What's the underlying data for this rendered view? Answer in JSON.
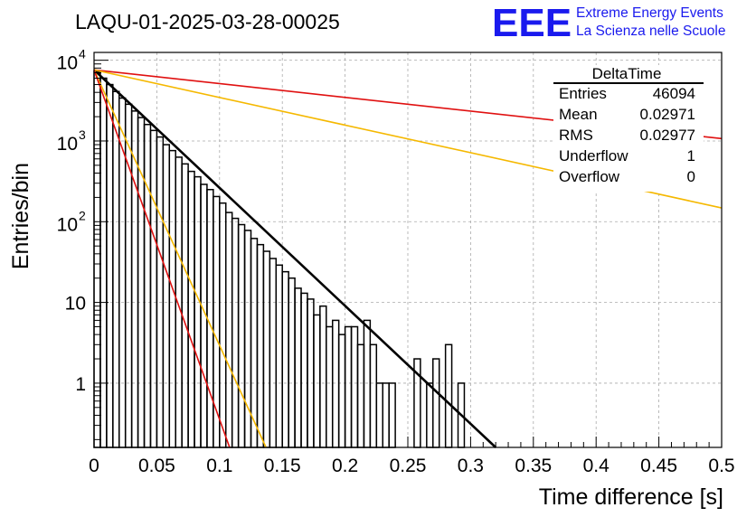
{
  "chart_data": {
    "type": "histogram",
    "title": "LAQU-01-2025-03-28-00025",
    "xlabel": "Time difference [s]",
    "ylabel": "Entries/bin",
    "xlim": [
      0,
      0.5
    ],
    "ylim": [
      0.16,
      12500
    ],
    "y_scale": "log",
    "grid": true,
    "x_ticks": [
      {
        "v": 0,
        "label": "0"
      },
      {
        "v": 0.05,
        "label": "0.05"
      },
      {
        "v": 0.1,
        "label": "0.1"
      },
      {
        "v": 0.15,
        "label": "0.15"
      },
      {
        "v": 0.2,
        "label": "0.2"
      },
      {
        "v": 0.25,
        "label": "0.25"
      },
      {
        "v": 0.3,
        "label": "0.3"
      },
      {
        "v": 0.35,
        "label": "0.35"
      },
      {
        "v": 0.4,
        "label": "0.4"
      },
      {
        "v": 0.45,
        "label": "0.45"
      },
      {
        "v": 0.5,
        "label": "0.5"
      }
    ],
    "y_ticks": [
      {
        "v": 1,
        "label": "1"
      },
      {
        "v": 10,
        "label": "10"
      },
      {
        "v": 100,
        "base": "10",
        "exp": "2"
      },
      {
        "v": 1000,
        "base": "10",
        "exp": "3"
      },
      {
        "v": 10000,
        "base": "10",
        "exp": "4"
      }
    ],
    "histogram": {
      "bin_width": 0.005,
      "values": [
        7200,
        6000,
        5000,
        4100,
        3400,
        2850,
        2350,
        1950,
        1600,
        1350,
        1120,
        900,
        760,
        630,
        520,
        420,
        360,
        290,
        250,
        205,
        170,
        130,
        110,
        92,
        78,
        62,
        52,
        43,
        35,
        29,
        24,
        20,
        15,
        13,
        11,
        7,
        9,
        5,
        6,
        4,
        5,
        5,
        3,
        6,
        3,
        1,
        1,
        1,
        0,
        0,
        0,
        2,
        0,
        1,
        2,
        0,
        3,
        0,
        1,
        0,
        0,
        0,
        0,
        0
      ]
    },
    "fits": [
      {
        "name": "fit",
        "color": "#000000",
        "width": 2.6,
        "points": [
          [
            0,
            7600
          ],
          [
            0.32,
            0.16
          ]
        ]
      },
      {
        "name": "slow-red",
        "color": "#e01010",
        "width": 1.6,
        "points": [
          [
            0,
            7600
          ],
          [
            0.5,
            1070
          ]
        ]
      },
      {
        "name": "slow-yellow",
        "color": "#f5b800",
        "width": 1.6,
        "points": [
          [
            0,
            7600
          ],
          [
            0.5,
            148
          ]
        ]
      },
      {
        "name": "fast-yellow",
        "color": "#f5b800",
        "width": 1.6,
        "points": [
          [
            0,
            7600
          ],
          [
            0.137,
            0.16
          ]
        ]
      },
      {
        "name": "fast-red",
        "color": "#e01010",
        "width": 1.6,
        "points": [
          [
            0,
            7600
          ],
          [
            0.108,
            0.16
          ]
        ]
      }
    ]
  },
  "stats": {
    "title": "DeltaTime",
    "rows": [
      {
        "label": "Entries",
        "value": "46094"
      },
      {
        "label": "Mean",
        "value": "0.02971"
      },
      {
        "label": "RMS",
        "value": "0.02977"
      },
      {
        "label": "Underflow",
        "value": "1"
      },
      {
        "label": "Overflow",
        "value": "0"
      }
    ]
  },
  "logo": {
    "mark": "EEE",
    "line1": "Extreme Energy Events",
    "line2": "La Scienza nelle Scuole",
    "color": "#1a1aee"
  }
}
